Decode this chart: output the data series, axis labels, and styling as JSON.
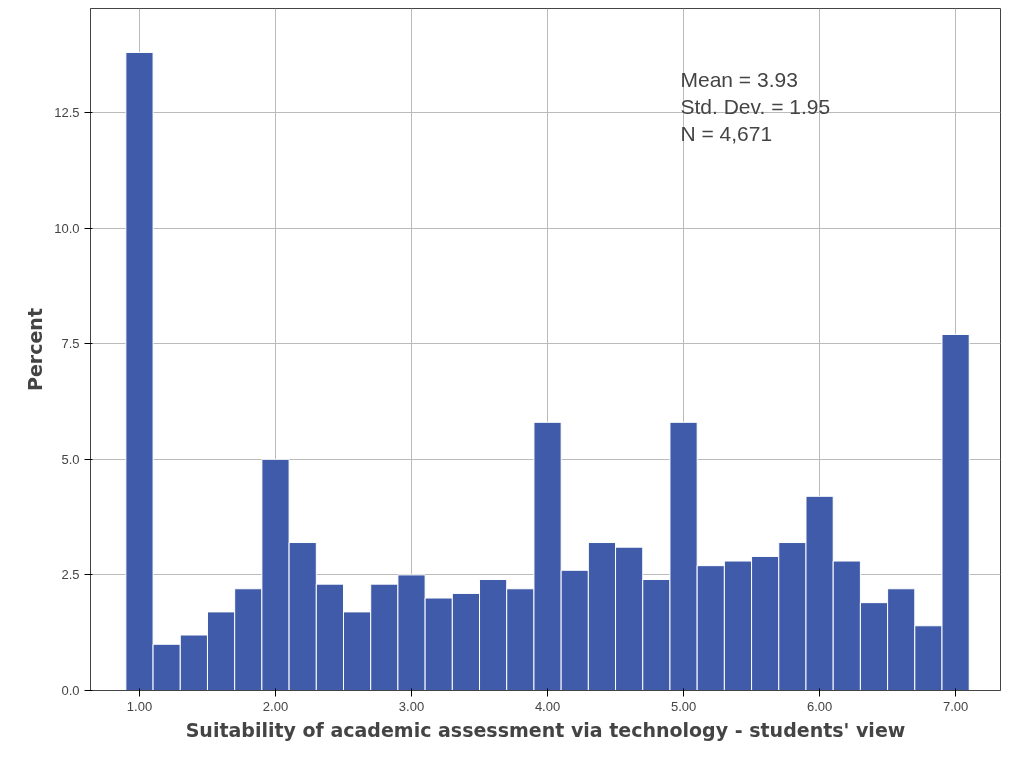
{
  "chart_data": {
    "type": "histogram",
    "xlabel": "Suitability of academic assessment via technology - students' view",
    "ylabel": "Percent",
    "bins": [
      0.9,
      1.1,
      1.3,
      1.5,
      1.7,
      1.9,
      2.1,
      2.3,
      2.5,
      2.7,
      2.9,
      3.1,
      3.3,
      3.5,
      3.7,
      3.9,
      4.1,
      4.3,
      4.5,
      4.7,
      4.9,
      5.1,
      5.3,
      5.5,
      5.7,
      5.9,
      6.1,
      6.3,
      6.5,
      6.7,
      6.9,
      7.1
    ],
    "values": [
      13.8,
      1.0,
      1.2,
      1.7,
      2.2,
      5.0,
      3.2,
      2.3,
      1.7,
      2.3,
      2.5,
      2.0,
      2.1,
      2.4,
      2.2,
      5.8,
      2.6,
      3.2,
      3.1,
      2.4,
      5.8,
      2.7,
      2.8,
      2.9,
      3.2,
      4.2,
      2.8,
      1.9,
      2.2,
      1.4,
      7.7
    ],
    "color": "#3f5ba9",
    "xlim": [
      0.64,
      7.33
    ],
    "xticks": [
      {
        "value": 1,
        "label": "1.00"
      },
      {
        "value": 2,
        "label": "2.00"
      },
      {
        "value": 3,
        "label": "3.00"
      },
      {
        "value": 4,
        "label": "4.00"
      },
      {
        "value": 5,
        "label": "5.00"
      },
      {
        "value": 6,
        "label": "6.00"
      },
      {
        "value": 7,
        "label": "7.00"
      }
    ],
    "ylim": [
      0,
      14.75
    ],
    "yticks": [
      {
        "value": 0,
        "label": "0.0"
      },
      2.5,
      {
        "value": 5,
        "label": "5.0"
      },
      7.5,
      {
        "value": 10,
        "label": "10.0"
      },
      12.5
    ],
    "grid": true,
    "annotations": [
      "Mean = 3.93",
      "Std. Dev. = 1.95",
      "N = 4,671"
    ]
  }
}
